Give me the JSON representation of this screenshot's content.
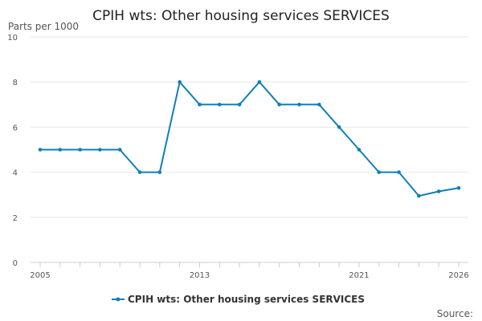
{
  "chart_data": {
    "type": "line",
    "title": "CPIH wts: Other housing services SERVICES",
    "y_unit_label": "Parts per 1000",
    "xlabel": "",
    "ylabel": "",
    "x": [
      2005,
      2006,
      2007,
      2008,
      2009,
      2010,
      2011,
      2012,
      2013,
      2014,
      2015,
      2016,
      2017,
      2018,
      2019,
      2020,
      2021,
      2022,
      2023,
      2024,
      2025,
      2026
    ],
    "x_tick_labels": [
      "2005",
      "2013",
      "2021",
      "2026"
    ],
    "x_tick_values": [
      2005,
      2013,
      2021,
      2026
    ],
    "ylim": [
      0,
      10
    ],
    "y_ticks": [
      0,
      2,
      4,
      6,
      8,
      10
    ],
    "series": [
      {
        "name": "CPIH wts: Other housing services SERVICES",
        "color": "#0f7fb8",
        "values": [
          5,
          5,
          5,
          5,
          5,
          4,
          4,
          8,
          7,
          7,
          7,
          8,
          7,
          7,
          7,
          6,
          5,
          4,
          4,
          2.95,
          3.15,
          3.3
        ]
      }
    ],
    "grid": true,
    "legend_position": "bottom-center",
    "source_label": "Source:"
  }
}
